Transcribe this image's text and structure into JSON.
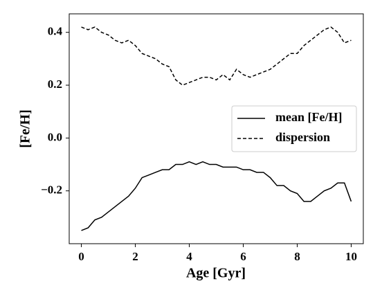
{
  "chart_data": {
    "type": "line",
    "xlabel": "Age [Gyr]",
    "ylabel": "[Fe/H]",
    "x": [
      0,
      0.25,
      0.5,
      0.75,
      1,
      1.25,
      1.5,
      1.75,
      2,
      2.25,
      2.5,
      2.75,
      3,
      3.25,
      3.5,
      3.75,
      4,
      4.25,
      4.5,
      4.75,
      5,
      5.25,
      5.5,
      5.75,
      6,
      6.25,
      6.5,
      6.75,
      7,
      7.25,
      7.5,
      7.75,
      8,
      8.25,
      8.5,
      8.75,
      9,
      9.25,
      9.5,
      9.75,
      10
    ],
    "series": [
      {
        "name": "mean [Fe/H]",
        "color": "#000000",
        "linestyle": "solid",
        "values": [
          -0.35,
          -0.34,
          -0.31,
          -0.3,
          -0.28,
          -0.26,
          -0.24,
          -0.22,
          -0.19,
          -0.15,
          -0.14,
          -0.13,
          -0.12,
          -0.12,
          -0.1,
          -0.1,
          -0.09,
          -0.1,
          -0.09,
          -0.1,
          -0.1,
          -0.11,
          -0.11,
          -0.11,
          -0.12,
          -0.12,
          -0.13,
          -0.13,
          -0.15,
          -0.18,
          -0.18,
          -0.2,
          -0.21,
          -0.24,
          -0.24,
          -0.22,
          -0.2,
          -0.19,
          -0.17,
          -0.17,
          -0.24
        ]
      },
      {
        "name": "dispersion",
        "color": "#000000",
        "linestyle": "dashed",
        "values": [
          0.42,
          0.41,
          0.42,
          0.4,
          0.39,
          0.37,
          0.36,
          0.37,
          0.35,
          0.32,
          0.31,
          0.3,
          0.28,
          0.27,
          0.22,
          0.2,
          0.21,
          0.22,
          0.23,
          0.23,
          0.22,
          0.24,
          0.22,
          0.26,
          0.24,
          0.23,
          0.24,
          0.25,
          0.26,
          0.28,
          0.3,
          0.32,
          0.32,
          0.35,
          0.37,
          0.39,
          0.41,
          0.42,
          0.4,
          0.36,
          0.37
        ]
      }
    ],
    "xlim": [
      -0.45,
      10.45
    ],
    "ylim": [
      -0.4,
      0.47
    ],
    "xticks": [
      0,
      2,
      4,
      6,
      8,
      10
    ],
    "yticks": [
      {
        "value": -0.2,
        "label": "−0.2"
      },
      {
        "value": 0,
        "label": "0.0"
      },
      0.2,
      0.4
    ],
    "legend": "center right",
    "grid": false
  }
}
